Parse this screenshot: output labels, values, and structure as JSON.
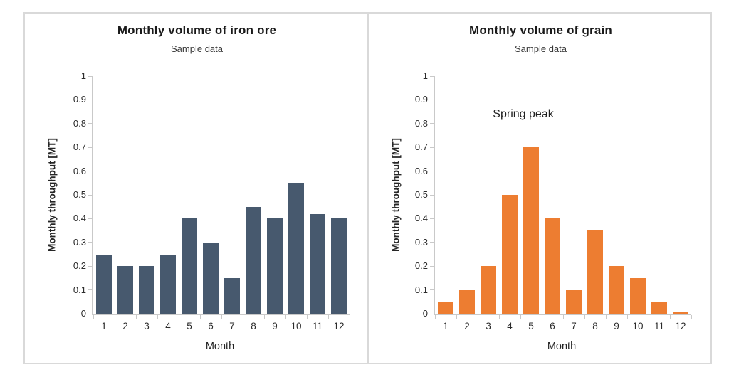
{
  "figure": {
    "background": "#ffffff",
    "border_color": "#d9d9d9"
  },
  "chart_data": [
    {
      "type": "bar",
      "title": "Monthly volume of iron ore",
      "subtitle": "Sample data",
      "xlabel": "Month",
      "ylabel": "Monthly throughput [MT]",
      "categories": [
        "1",
        "2",
        "3",
        "4",
        "5",
        "6",
        "7",
        "8",
        "9",
        "10",
        "11",
        "12"
      ],
      "values": [
        0.25,
        0.2,
        0.2,
        0.25,
        0.4,
        0.3,
        0.15,
        0.45,
        0.4,
        0.55,
        0.42,
        0.4
      ],
      "ylim": [
        0,
        1
      ],
      "ytick_step": 0.1,
      "grid": false,
      "legend": false,
      "bar_color": "#47596e",
      "annotation": null
    },
    {
      "type": "bar",
      "title": "Monthly volume of grain",
      "subtitle": "Sample data",
      "xlabel": "Month",
      "ylabel": "Monthly throughput [MT]",
      "categories": [
        "1",
        "2",
        "3",
        "4",
        "5",
        "6",
        "7",
        "8",
        "9",
        "10",
        "11",
        "12"
      ],
      "values": [
        0.05,
        0.1,
        0.2,
        0.5,
        0.7,
        0.4,
        0.1,
        0.35,
        0.2,
        0.15,
        0.05,
        0.01
      ],
      "ylim": [
        0,
        1
      ],
      "ytick_step": 0.1,
      "grid": false,
      "legend": false,
      "bar_color": "#ed7d31",
      "annotation": {
        "text": "Spring peak"
      }
    }
  ]
}
